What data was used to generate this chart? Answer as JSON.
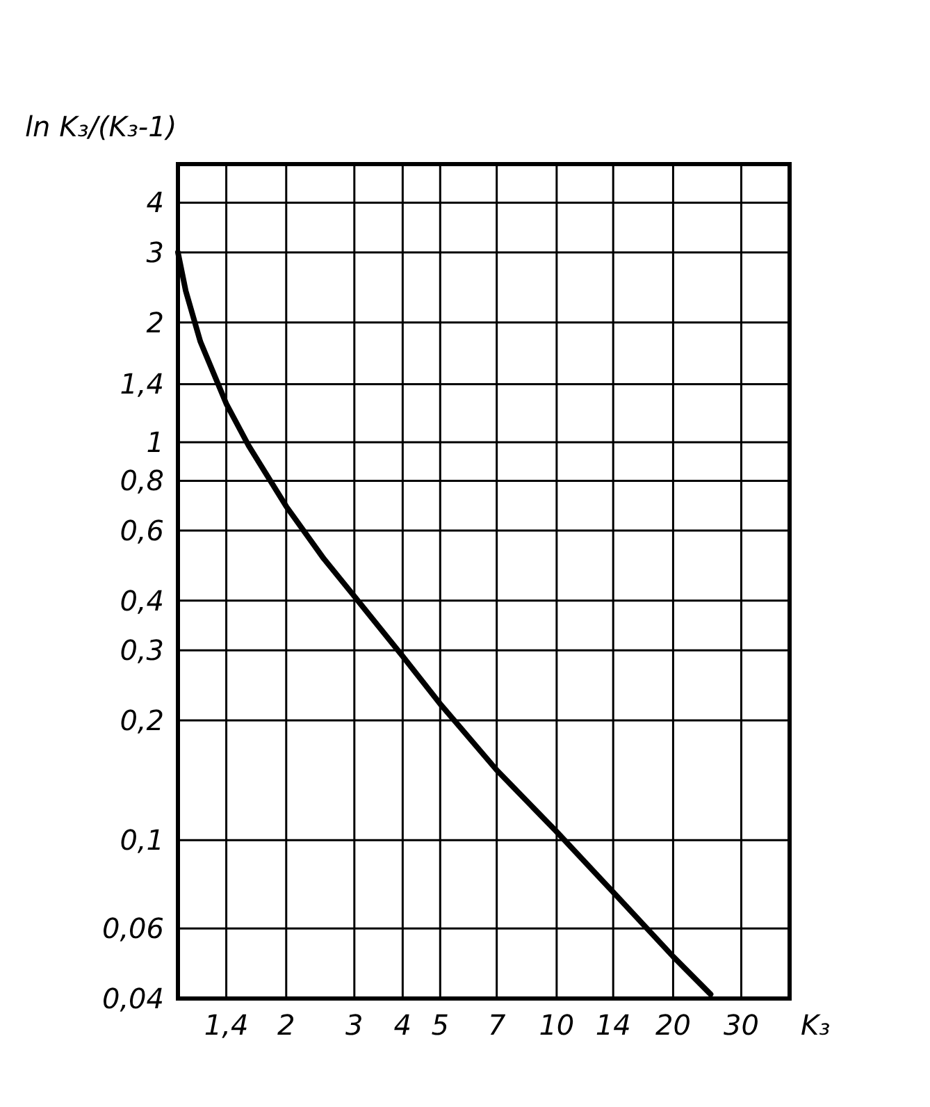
{
  "chart_data": {
    "type": "line",
    "xlabel": "K₃",
    "ylabel": "ln K₃/(K₃-1)",
    "log": "xy",
    "grid": true,
    "marker": "none",
    "line_style": "solid",
    "xlim": [
      1.05,
      40
    ],
    "ylim": [
      0.04,
      5
    ],
    "xticks": [
      {
        "value": 1.4,
        "label": "1,4"
      },
      2,
      3,
      4,
      5,
      7,
      10,
      14,
      20,
      30
    ],
    "yticks": [
      {
        "value": 0.04,
        "label": "0,04"
      },
      {
        "value": 0.06,
        "label": "0,06"
      },
      {
        "value": 0.1,
        "label": "0,1"
      },
      {
        "value": 0.2,
        "label": "0,2"
      },
      {
        "value": 0.3,
        "label": "0,3"
      },
      {
        "value": 0.4,
        "label": "0,4"
      },
      {
        "value": 0.6,
        "label": "0,6"
      },
      {
        "value": 0.8,
        "label": "0,8"
      },
      1,
      {
        "value": 1.4,
        "label": "1,4"
      },
      2,
      3,
      4
    ],
    "series": [
      {
        "color": "#000000",
        "x": [
          1.05,
          1.1,
          1.2,
          1.4,
          1.6,
          2,
          2.5,
          3,
          4,
          5,
          7,
          10,
          14,
          20,
          25
        ],
        "values": [
          3.0,
          2.4,
          1.79,
          1.25,
          0.98,
          0.69,
          0.51,
          0.41,
          0.29,
          0.22,
          0.15,
          0.105,
          0.074,
          0.051,
          0.041
        ]
      }
    ]
  }
}
